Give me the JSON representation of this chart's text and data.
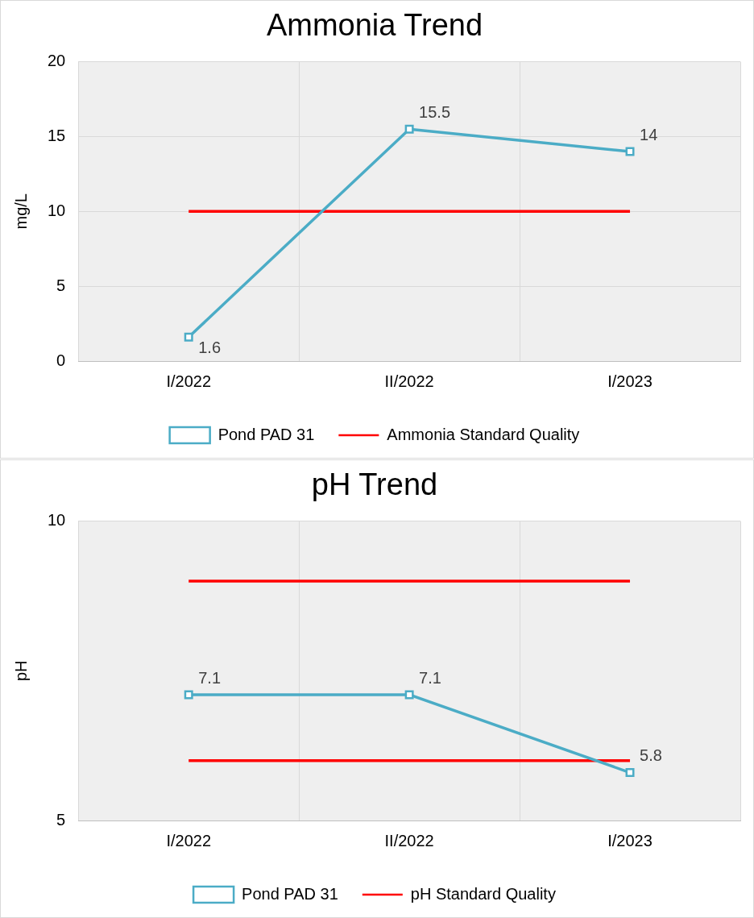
{
  "chart_data": [
    {
      "type": "line",
      "title": "Ammonia Trend",
      "ylabel": "mg/L",
      "categories": [
        "I/2022",
        "II/2022",
        "I/2023"
      ],
      "ylim": [
        0,
        20
      ],
      "yticks": [
        0,
        5,
        10,
        15,
        20
      ],
      "grid": true,
      "legend": "bottom",
      "series": [
        {
          "name": "Pond PAD 31",
          "color": "#4bacc6",
          "values": [
            1.6,
            15.5,
            14
          ],
          "marker": "square",
          "value_labels": [
            "1.6",
            "15.5",
            "14"
          ]
        },
        {
          "name": "Ammonia Standard Quality",
          "color": "#ff0000",
          "values": [
            10,
            10,
            10
          ],
          "marker": "none"
        }
      ]
    },
    {
      "type": "line",
      "title": "pH Trend",
      "ylabel": "pH",
      "categories": [
        "I/2022",
        "II/2022",
        "I/2023"
      ],
      "ylim": [
        5,
        10
      ],
      "yticks": [
        5,
        10
      ],
      "grid": true,
      "legend": "bottom",
      "series": [
        {
          "name": "Pond PAD 31",
          "color": "#4bacc6",
          "values": [
            7.1,
            7.1,
            5.8
          ],
          "marker": "square",
          "value_labels": [
            "7.1",
            "7.1",
            "5.8"
          ]
        },
        {
          "name": "pH Standard Quality",
          "color": "#ff0000",
          "values": [
            9,
            9,
            9
          ],
          "marker": "none"
        },
        {
          "color": "#ff0000",
          "values": [
            6,
            6,
            6
          ],
          "marker": "none"
        }
      ]
    }
  ]
}
